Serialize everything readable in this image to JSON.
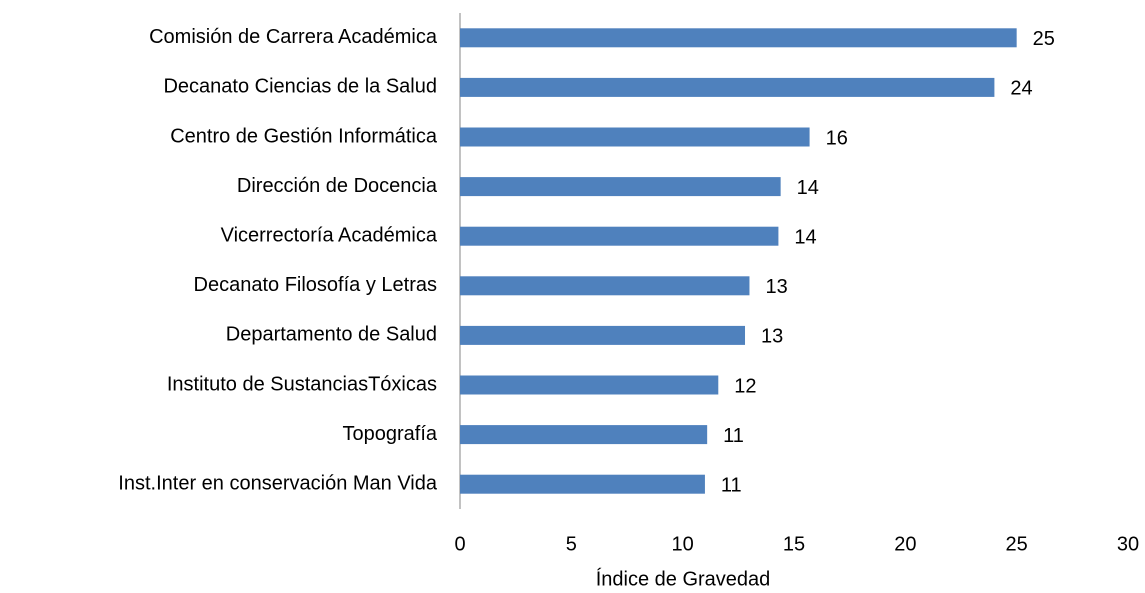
{
  "chart_data": {
    "type": "bar",
    "orientation": "horizontal",
    "categories": [
      "Comisión de Carrera Académica",
      "Decanato Ciencias de la Salud",
      "Centro de Gestión Informática",
      "Dirección de Docencia",
      "Vicerrectoría Académica",
      "Decanato Filosofía y Letras",
      "Departamento de Salud",
      "Instituto de SustanciasTóxicas",
      "Topografía",
      "Inst.Inter en conservación Man Vida"
    ],
    "values": [
      25,
      24,
      15.7,
      14.4,
      14.3,
      13,
      12.8,
      11.6,
      11.1,
      11
    ],
    "value_labels": [
      "25",
      "24",
      "16",
      "14",
      "14",
      "13",
      "13",
      "12",
      "11",
      "11"
    ],
    "color": "#4f81bd",
    "xlabel": "Índice de Gravedad",
    "xlim": [
      0,
      30
    ],
    "xticks": [
      0,
      5,
      10,
      15,
      20,
      25,
      30
    ],
    "grid": false
  }
}
